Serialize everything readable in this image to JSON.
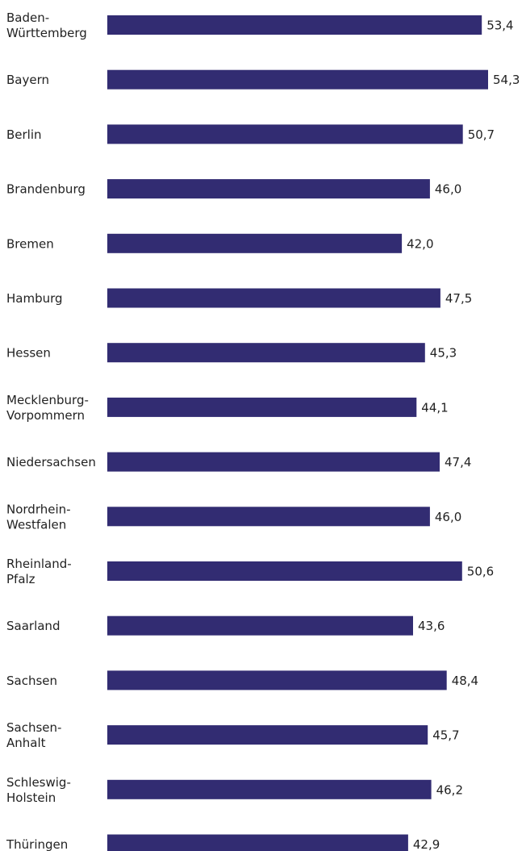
{
  "chart_data": {
    "type": "bar",
    "orientation": "horizontal",
    "categories": [
      [
        "Baden-",
        "Württemberg"
      ],
      [
        "Bayern"
      ],
      [
        "Berlin"
      ],
      [
        "Brandenburg"
      ],
      [
        "Bremen"
      ],
      [
        "Hamburg"
      ],
      [
        "Hessen"
      ],
      [
        "Mecklenburg-",
        "Vorpommern"
      ],
      [
        "Niedersachsen"
      ],
      [
        "Nordrhein-",
        "Westfalen"
      ],
      [
        "Rheinland-",
        "Pfalz"
      ],
      [
        "Saarland"
      ],
      [
        "Sachsen"
      ],
      [
        "Sachsen-",
        "Anhalt"
      ],
      [
        "Schleswig-",
        "Holstein"
      ],
      [
        "Thüringen"
      ]
    ],
    "values": [
      53.4,
      54.3,
      50.7,
      46.0,
      42.0,
      47.5,
      45.3,
      44.1,
      47.4,
      46.0,
      50.6,
      43.6,
      48.4,
      45.7,
      46.2,
      42.9
    ],
    "value_labels": [
      "53,4",
      "54,3",
      "50,7",
      "46,0",
      "42,0",
      "47,5",
      "45,3",
      "44,1",
      "47,4",
      "46,0",
      "50,6",
      "43,6",
      "48,4",
      "45,7",
      "46,2",
      "42,9"
    ],
    "bar_color": "#322c72",
    "text_color": "#222222",
    "xlim": [
      0,
      54.3
    ],
    "grid": false,
    "legend": "none"
  }
}
